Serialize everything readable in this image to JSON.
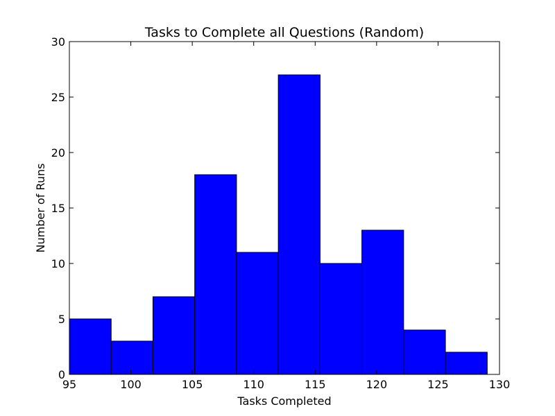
{
  "chart_data": {
    "type": "bar",
    "title": "Tasks to Complete all Questions (Random)",
    "xlabel": "Tasks Completed",
    "ylabel": "Number of Runs",
    "xlim": [
      95,
      130
    ],
    "ylim": [
      0,
      30
    ],
    "xticks": [
      95,
      100,
      105,
      110,
      115,
      120,
      125,
      130
    ],
    "yticks": [
      0,
      5,
      10,
      15,
      20,
      25,
      30
    ],
    "bin_edges": [
      95,
      98.4,
      101.8,
      105.2,
      108.6,
      112.0,
      115.4,
      118.8,
      122.2,
      125.6,
      129
    ],
    "values": [
      5,
      3,
      7,
      18,
      11,
      27,
      10,
      13,
      4,
      2
    ],
    "bar_color": "#0000ff",
    "edge_color": "#000000",
    "grid": false,
    "legend": false
  }
}
